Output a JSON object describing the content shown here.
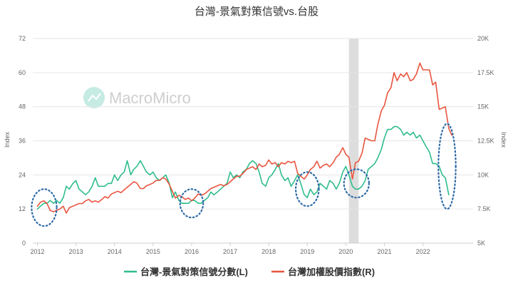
{
  "chart_data": {
    "type": "line",
    "title": "台灣-景氣對策信號vs.台股",
    "watermark": "MacroMicro",
    "ylabel_left": "Index",
    "ylabel_right": "Index",
    "x_ticks": [
      "2012",
      "2013",
      "2014",
      "2015",
      "2016",
      "2017",
      "2018",
      "2019",
      "2020",
      "2021",
      "2022"
    ],
    "y_left": {
      "min": 0,
      "max": 72,
      "ticks": [
        "0",
        "12",
        "24",
        "36",
        "48",
        "60",
        "72"
      ]
    },
    "y_right": {
      "min": 5000,
      "max": 20000,
      "ticks": [
        "5K",
        "7.5K",
        "10K",
        "12.5K",
        "15K",
        "17.5K",
        "20K"
      ]
    },
    "shaded_region": {
      "from": 2020.08,
      "to": 2020.33,
      "color": "#dddddd"
    },
    "annotation_ellipses": [
      {
        "x_from": 2011.85,
        "x_to": 2012.5,
        "y_from": 6,
        "y_to": 19
      },
      {
        "x_from": 2015.7,
        "x_to": 2016.3,
        "y_from": 9,
        "y_to": 19
      },
      {
        "x_from": 2018.7,
        "x_to": 2019.3,
        "y_from": 13,
        "y_to": 25
      },
      {
        "x_from": 2019.95,
        "x_to": 2020.6,
        "y_from": 16,
        "y_to": 26
      },
      {
        "x_from": 2022.4,
        "x_to": 2022.85,
        "y_from": 12,
        "y_to": 42
      }
    ],
    "series": [
      {
        "name": "台灣-景氣對策信號分數(L)",
        "axis": "left",
        "color": "#2fbd8c",
        "points": [
          [
            2012.0,
            12
          ],
          [
            2012.08,
            13
          ],
          [
            2012.17,
            14
          ],
          [
            2012.25,
            14
          ],
          [
            2012.33,
            15
          ],
          [
            2012.42,
            14
          ],
          [
            2012.5,
            15
          ],
          [
            2012.58,
            14
          ],
          [
            2012.67,
            16
          ],
          [
            2012.75,
            20
          ],
          [
            2012.83,
            19
          ],
          [
            2012.92,
            21
          ],
          [
            2013.0,
            22
          ],
          [
            2013.08,
            19
          ],
          [
            2013.17,
            18
          ],
          [
            2013.25,
            17
          ],
          [
            2013.33,
            18
          ],
          [
            2013.42,
            20
          ],
          [
            2013.5,
            23
          ],
          [
            2013.58,
            20
          ],
          [
            2013.67,
            20
          ],
          [
            2013.75,
            20
          ],
          [
            2013.83,
            21
          ],
          [
            2013.92,
            21
          ],
          [
            2014.0,
            24
          ],
          [
            2014.08,
            22
          ],
          [
            2014.17,
            24
          ],
          [
            2014.25,
            25
          ],
          [
            2014.33,
            29
          ],
          [
            2014.42,
            24
          ],
          [
            2014.5,
            26
          ],
          [
            2014.58,
            27
          ],
          [
            2014.67,
            29
          ],
          [
            2014.75,
            27
          ],
          [
            2014.83,
            25
          ],
          [
            2014.92,
            24
          ],
          [
            2015.0,
            25
          ],
          [
            2015.08,
            23
          ],
          [
            2015.17,
            22
          ],
          [
            2015.25,
            23
          ],
          [
            2015.33,
            24
          ],
          [
            2015.42,
            21
          ],
          [
            2015.5,
            16
          ],
          [
            2015.58,
            18
          ],
          [
            2015.67,
            15
          ],
          [
            2015.75,
            14
          ],
          [
            2015.83,
            14
          ],
          [
            2015.92,
            14
          ],
          [
            2016.0,
            15
          ],
          [
            2016.08,
            15
          ],
          [
            2016.17,
            14
          ],
          [
            2016.25,
            14
          ],
          [
            2016.33,
            15
          ],
          [
            2016.42,
            16
          ],
          [
            2016.5,
            18
          ],
          [
            2016.58,
            17
          ],
          [
            2016.67,
            18
          ],
          [
            2016.75,
            19
          ],
          [
            2016.83,
            20
          ],
          [
            2016.92,
            21
          ],
          [
            2017.0,
            25
          ],
          [
            2017.08,
            23
          ],
          [
            2017.17,
            24
          ],
          [
            2017.25,
            23
          ],
          [
            2017.33,
            25
          ],
          [
            2017.42,
            26
          ],
          [
            2017.5,
            28
          ],
          [
            2017.58,
            29
          ],
          [
            2017.67,
            28
          ],
          [
            2017.75,
            25
          ],
          [
            2017.83,
            21
          ],
          [
            2017.92,
            20
          ],
          [
            2018.0,
            23
          ],
          [
            2018.08,
            24
          ],
          [
            2018.17,
            26
          ],
          [
            2018.25,
            28
          ],
          [
            2018.33,
            24
          ],
          [
            2018.42,
            22
          ],
          [
            2018.5,
            23
          ],
          [
            2018.58,
            20
          ],
          [
            2018.67,
            22
          ],
          [
            2018.75,
            24
          ],
          [
            2018.83,
            21
          ],
          [
            2018.92,
            17
          ],
          [
            2019.0,
            16
          ],
          [
            2019.08,
            19
          ],
          [
            2019.17,
            17
          ],
          [
            2019.25,
            18
          ],
          [
            2019.33,
            21
          ],
          [
            2019.42,
            20
          ],
          [
            2019.5,
            19
          ],
          [
            2019.58,
            22
          ],
          [
            2019.67,
            21
          ],
          [
            2019.75,
            19
          ],
          [
            2019.83,
            21
          ],
          [
            2019.92,
            25
          ],
          [
            2020.0,
            27
          ],
          [
            2020.08,
            24
          ],
          [
            2020.17,
            20
          ],
          [
            2020.25,
            19
          ],
          [
            2020.33,
            19
          ],
          [
            2020.42,
            20
          ],
          [
            2020.5,
            22
          ],
          [
            2020.58,
            26
          ],
          [
            2020.67,
            27
          ],
          [
            2020.75,
            28
          ],
          [
            2020.83,
            30
          ],
          [
            2020.92,
            33
          ],
          [
            2021.0,
            37
          ],
          [
            2021.08,
            40
          ],
          [
            2021.17,
            40
          ],
          [
            2021.25,
            41
          ],
          [
            2021.33,
            41
          ],
          [
            2021.42,
            40
          ],
          [
            2021.5,
            38
          ],
          [
            2021.58,
            39
          ],
          [
            2021.67,
            38
          ],
          [
            2021.75,
            39
          ],
          [
            2021.83,
            37
          ],
          [
            2021.92,
            38
          ],
          [
            2022.0,
            36
          ],
          [
            2022.08,
            34
          ],
          [
            2022.17,
            32
          ],
          [
            2022.25,
            28
          ],
          [
            2022.33,
            28
          ],
          [
            2022.42,
            27
          ],
          [
            2022.5,
            24
          ],
          [
            2022.58,
            23
          ],
          [
            2022.67,
            17
          ]
        ]
      },
      {
        "name": "台灣加權股價指數(R)",
        "axis": "right",
        "color": "#e8553f",
        "points": [
          [
            2012.0,
            7700
          ],
          [
            2012.08,
            8000
          ],
          [
            2012.17,
            8100
          ],
          [
            2012.25,
            7900
          ],
          [
            2012.33,
            7400
          ],
          [
            2012.42,
            7300
          ],
          [
            2012.5,
            7400
          ],
          [
            2012.58,
            7500
          ],
          [
            2012.67,
            7700
          ],
          [
            2012.75,
            7200
          ],
          [
            2012.83,
            7600
          ],
          [
            2012.92,
            7700
          ],
          [
            2013.0,
            7800
          ],
          [
            2013.08,
            7900
          ],
          [
            2013.17,
            7900
          ],
          [
            2013.25,
            8100
          ],
          [
            2013.33,
            8200
          ],
          [
            2013.42,
            8000
          ],
          [
            2013.5,
            8100
          ],
          [
            2013.58,
            8000
          ],
          [
            2013.67,
            8200
          ],
          [
            2013.75,
            8400
          ],
          [
            2013.83,
            8300
          ],
          [
            2013.92,
            8600
          ],
          [
            2014.0,
            8700
          ],
          [
            2014.08,
            8800
          ],
          [
            2014.17,
            8700
          ],
          [
            2014.25,
            8900
          ],
          [
            2014.33,
            9100
          ],
          [
            2014.42,
            9300
          ],
          [
            2014.5,
            9500
          ],
          [
            2014.58,
            9400
          ],
          [
            2014.67,
            9000
          ],
          [
            2014.75,
            9000
          ],
          [
            2014.83,
            9200
          ],
          [
            2014.92,
            9300
          ],
          [
            2015.0,
            9400
          ],
          [
            2015.08,
            9600
          ],
          [
            2015.17,
            9600
          ],
          [
            2015.25,
            9800
          ],
          [
            2015.33,
            9700
          ],
          [
            2015.42,
            9300
          ],
          [
            2015.5,
            8800
          ],
          [
            2015.58,
            8300
          ],
          [
            2015.67,
            8500
          ],
          [
            2015.75,
            8400
          ],
          [
            2015.83,
            8200
          ],
          [
            2015.92,
            8300
          ],
          [
            2016.0,
            8100
          ],
          [
            2016.08,
            8300
          ],
          [
            2016.17,
            8600
          ],
          [
            2016.25,
            8500
          ],
          [
            2016.33,
            8600
          ],
          [
            2016.42,
            8800
          ],
          [
            2016.5,
            9000
          ],
          [
            2016.58,
            9100
          ],
          [
            2016.67,
            9200
          ],
          [
            2016.75,
            9300
          ],
          [
            2016.83,
            9200
          ],
          [
            2016.92,
            9300
          ],
          [
            2017.0,
            9500
          ],
          [
            2017.08,
            9700
          ],
          [
            2017.17,
            9900
          ],
          [
            2017.25,
            9900
          ],
          [
            2017.33,
            10100
          ],
          [
            2017.42,
            10400
          ],
          [
            2017.5,
            10500
          ],
          [
            2017.58,
            10600
          ],
          [
            2017.67,
            10400
          ],
          [
            2017.75,
            10800
          ],
          [
            2017.83,
            10600
          ],
          [
            2017.92,
            10700
          ],
          [
            2018.0,
            11100
          ],
          [
            2018.08,
            10800
          ],
          [
            2018.17,
            10900
          ],
          [
            2018.25,
            10600
          ],
          [
            2018.33,
            10900
          ],
          [
            2018.42,
            10800
          ],
          [
            2018.5,
            11000
          ],
          [
            2018.58,
            10900
          ],
          [
            2018.67,
            11000
          ],
          [
            2018.75,
            10100
          ],
          [
            2018.83,
            9900
          ],
          [
            2018.92,
            9700
          ],
          [
            2019.0,
            10000
          ],
          [
            2019.08,
            10400
          ],
          [
            2019.17,
            10600
          ],
          [
            2019.25,
            11000
          ],
          [
            2019.33,
            10500
          ],
          [
            2019.42,
            10700
          ],
          [
            2019.5,
            10800
          ],
          [
            2019.58,
            10600
          ],
          [
            2019.67,
            10900
          ],
          [
            2019.75,
            11300
          ],
          [
            2019.83,
            11500
          ],
          [
            2019.92,
            12000
          ],
          [
            2020.0,
            11500
          ],
          [
            2020.08,
            11300
          ],
          [
            2020.17,
            9700
          ],
          [
            2020.25,
            10900
          ],
          [
            2020.33,
            11000
          ],
          [
            2020.42,
            11600
          ],
          [
            2020.5,
            12700
          ],
          [
            2020.58,
            12600
          ],
          [
            2020.67,
            12500
          ],
          [
            2020.75,
            12500
          ],
          [
            2020.83,
            13700
          ],
          [
            2020.92,
            14700
          ],
          [
            2021.0,
            15100
          ],
          [
            2021.08,
            16000
          ],
          [
            2021.17,
            16400
          ],
          [
            2021.25,
            17500
          ],
          [
            2021.33,
            16900
          ],
          [
            2021.42,
            17400
          ],
          [
            2021.5,
            17200
          ],
          [
            2021.58,
            17500
          ],
          [
            2021.67,
            16900
          ],
          [
            2021.75,
            17000
          ],
          [
            2021.83,
            17400
          ],
          [
            2021.92,
            18200
          ],
          [
            2022.0,
            17700
          ],
          [
            2022.08,
            17700
          ],
          [
            2022.17,
            17700
          ],
          [
            2022.25,
            16600
          ],
          [
            2022.33,
            16800
          ],
          [
            2022.42,
            14800
          ],
          [
            2022.5,
            14900
          ],
          [
            2022.58,
            15000
          ],
          [
            2022.67,
            13400
          ],
          [
            2022.75,
            12900
          ]
        ]
      }
    ]
  }
}
